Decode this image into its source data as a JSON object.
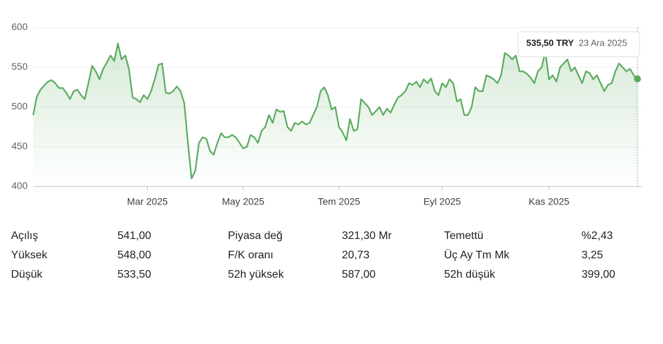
{
  "chart_data": {
    "type": "line",
    "color": "#5aab5e",
    "values": [
      490,
      513,
      522,
      527,
      532,
      534,
      530,
      524,
      524,
      518,
      510,
      520,
      522,
      515,
      510,
      530,
      552,
      545,
      535,
      548,
      556,
      565,
      558,
      580,
      560,
      565,
      548,
      512,
      510,
      506,
      515,
      510,
      520,
      535,
      553,
      555,
      518,
      517,
      520,
      526,
      520,
      505,
      455,
      410,
      420,
      455,
      462,
      460,
      445,
      440,
      455,
      467,
      462,
      462,
      465,
      462,
      455,
      448,
      450,
      465,
      462,
      455,
      470,
      475,
      490,
      480,
      497,
      494,
      495,
      475,
      470,
      480,
      478,
      482,
      478,
      480,
      490,
      500,
      520,
      525,
      515,
      497,
      500,
      475,
      468,
      458,
      485,
      470,
      472,
      510,
      505,
      500,
      490,
      495,
      500,
      490,
      498,
      493,
      503,
      512,
      515,
      520,
      530,
      528,
      532,
      525,
      535,
      530,
      536,
      520,
      515,
      530,
      525,
      535,
      530,
      507,
      510,
      490,
      490,
      500,
      525,
      520,
      520,
      540,
      538,
      535,
      530,
      540,
      568,
      565,
      560,
      565,
      545,
      545,
      542,
      537,
      530,
      545,
      550,
      570,
      535,
      540,
      532,
      550,
      555,
      560,
      545,
      550,
      540,
      530,
      545,
      543,
      535,
      540,
      530,
      520,
      528,
      530,
      545,
      555,
      550,
      545,
      548,
      540,
      535.5
    ],
    "xlim": [
      0,
      164
    ],
    "xticks": [
      {
        "value": 31,
        "label": "Mar 2025"
      },
      {
        "value": 57,
        "label": "May 2025"
      },
      {
        "value": 83,
        "label": "Tem 2025"
      },
      {
        "value": 111,
        "label": "Eyl 2025"
      },
      {
        "value": 140,
        "label": "Kas 2025"
      }
    ],
    "ylim": [
      400,
      600
    ],
    "yticks": [
      400,
      450,
      500,
      550,
      600
    ],
    "grid": true,
    "tooltip": {
      "value_label": "535,50 TRY",
      "date": "23 Ara 2025"
    }
  },
  "stats": [
    [
      {
        "label": "Açılış",
        "value": "541,00"
      },
      {
        "label": "Piyasa değ",
        "value": "321,30 Mr"
      },
      {
        "label": "Temettü",
        "value": "%2,43"
      }
    ],
    [
      {
        "label": "Yüksek",
        "value": "548,00"
      },
      {
        "label": "F/K oranı",
        "value": "20,73"
      },
      {
        "label": "Üç Ay Tm Mk",
        "value": "3,25"
      }
    ],
    [
      {
        "label": "Düşük",
        "value": "533,50"
      },
      {
        "label": "52h yüksek",
        "value": "587,00"
      },
      {
        "label": "52h düşük",
        "value": "399,00"
      }
    ]
  ]
}
